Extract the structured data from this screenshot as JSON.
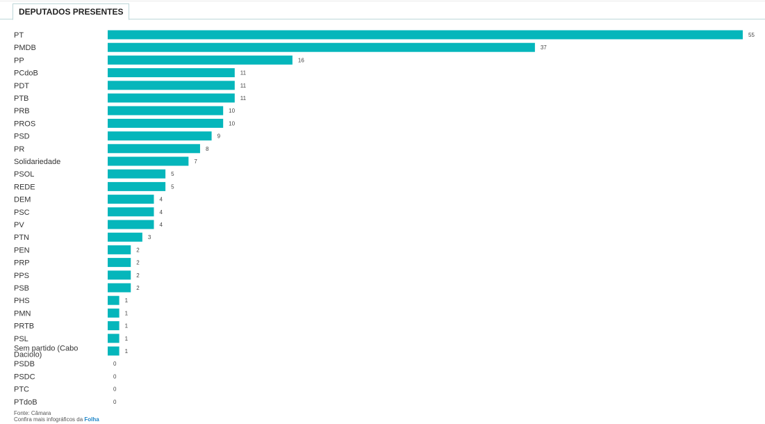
{
  "tab": {
    "label": "DEPUTADOS PRESENTES"
  },
  "chart_data": {
    "type": "bar",
    "orientation": "horizontal",
    "categories": [
      "PT",
      "PMDB",
      "PP",
      "PCdoB",
      "PDT",
      "PTB",
      "PRB",
      "PROS",
      "PSD",
      "PR",
      "Solidariedade",
      "PSOL",
      "REDE",
      "DEM",
      "PSC",
      "PV",
      "PTN",
      "PEN",
      "PRP",
      "PPS",
      "PSB",
      "PHS",
      "PMN",
      "PRTB",
      "PSL",
      "Sem partido (Cabo Daciolo)",
      "PSDB",
      "PSDC",
      "PTC",
      "PTdoB"
    ],
    "values": [
      55,
      37,
      16,
      11,
      11,
      11,
      10,
      10,
      9,
      8,
      7,
      5,
      5,
      4,
      4,
      4,
      3,
      2,
      2,
      2,
      2,
      1,
      1,
      1,
      1,
      1,
      0,
      0,
      0,
      0
    ],
    "xlim": [
      0,
      55
    ],
    "grid": false,
    "bar_color": "#05b6bb"
  },
  "footer": {
    "source": "Fonte: Câmara",
    "more_prefix": "Confira mais infográficos da ",
    "more_link": "Folha"
  }
}
